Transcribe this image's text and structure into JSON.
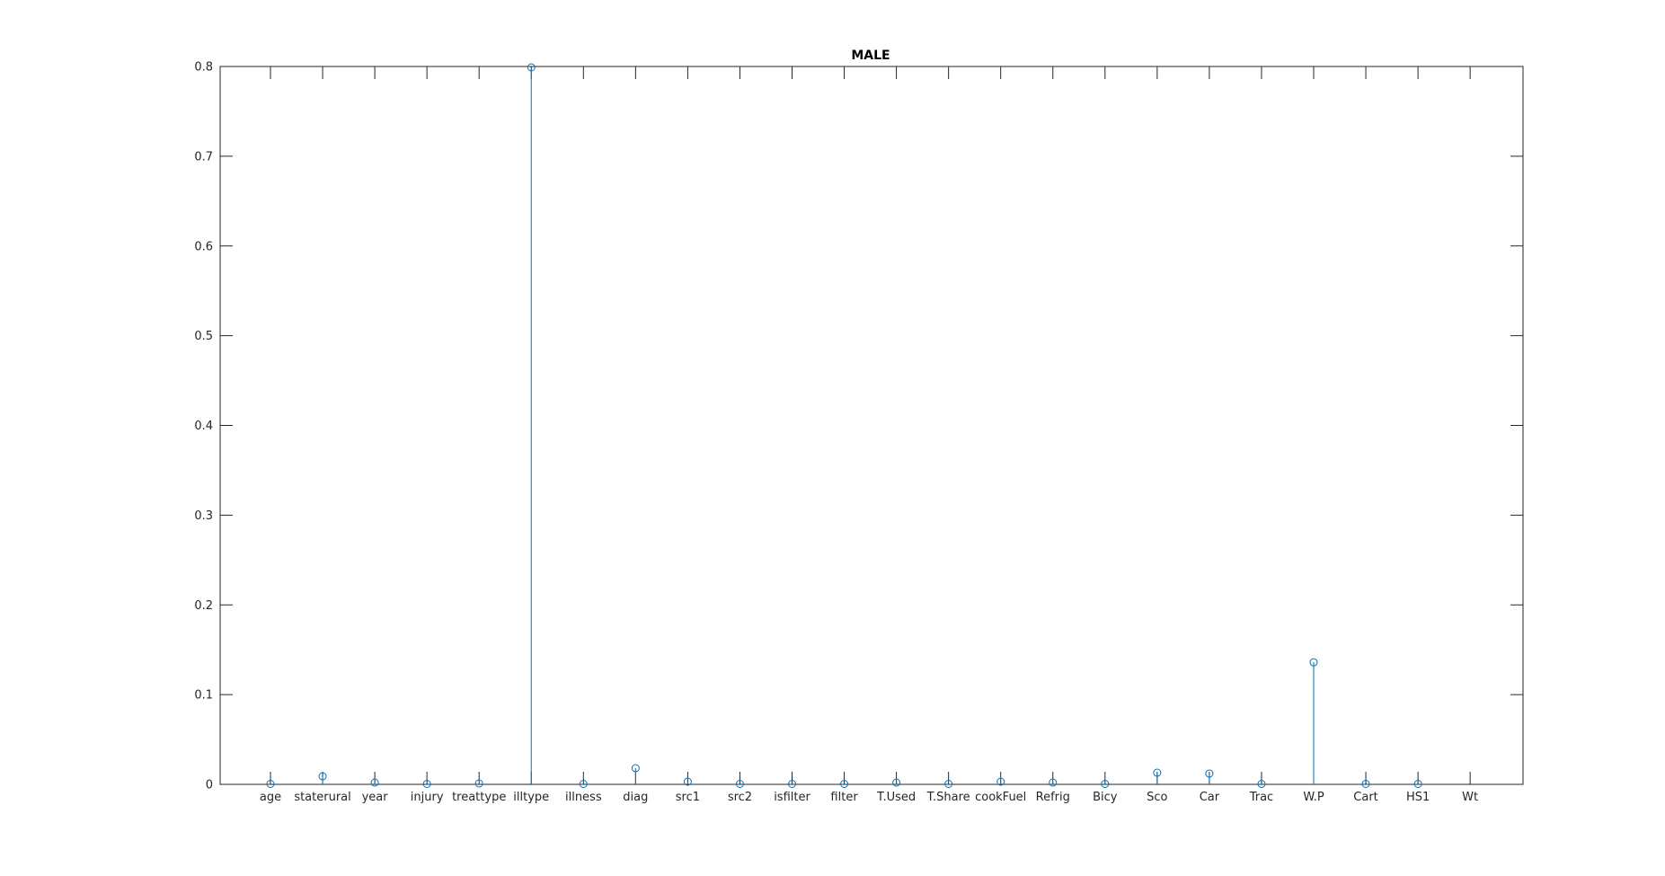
{
  "chart_data": {
    "type": "stem",
    "title": "MALE",
    "xlabel": "",
    "ylabel": "",
    "categories": [
      "age",
      "staterural",
      "year",
      "injury",
      "treattype",
      "illtype",
      "illness",
      "diag",
      "src1",
      "src2",
      "isfilter",
      "filter",
      "T.Used",
      "T.Share",
      "cookFuel",
      "Refrig",
      "Bicy",
      "Sco",
      "Car",
      "Trac",
      "W.P",
      "Cart",
      "HS1",
      "Wt"
    ],
    "values": [
      0.0005,
      0.009,
      0.002,
      0.0005,
      0.001,
      0.799,
      0.0005,
      0.018,
      0.003,
      0.0005,
      0.0005,
      0.0005,
      0.002,
      0.0005,
      0.003,
      0.002,
      0.0005,
      0.013,
      0.012,
      0.0005,
      0.136,
      0.0005,
      0.0005,
      null
    ],
    "ylim": [
      0,
      0.8
    ],
    "yticks": [
      "0",
      "0.1",
      "0.2",
      "0.3",
      "0.4",
      "0.5",
      "0.6",
      "0.7",
      "0.8"
    ],
    "grid": false,
    "colors": {
      "series": "#0072BD",
      "axes": "#262626"
    }
  }
}
